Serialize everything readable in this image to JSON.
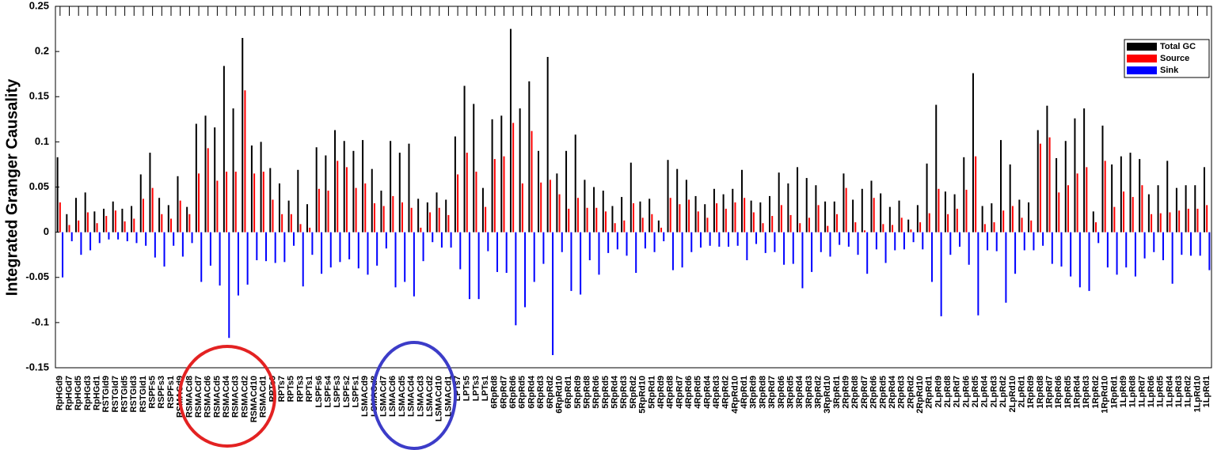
{
  "chart_data": {
    "type": "bar",
    "y_label": "Integrated Granger Causality",
    "categories": [
      "RpHGd9",
      "RpHGd7",
      "RpHGd5",
      "RpHGd3",
      "RpHGd1",
      "RSTGId9",
      "RSTGId7",
      "RSTGId5",
      "RSTGId3",
      "RSTGId1",
      "RSPFs5",
      "RSPFs3",
      "RSPFs1",
      "RSMACd9",
      "RSMACd8",
      "RSMACd7",
      "RSMACd6",
      "RSMACd5",
      "RSMACd4",
      "RSMACd3",
      "RSMACd2",
      "RSMACd10",
      "RSMACd1",
      "RPTs9",
      "RPTs7",
      "RPTs5",
      "RPTs3",
      "RPTs1",
      "LSPFs6",
      "LSPFs4",
      "LSPFs3",
      "LSPFs2",
      "LSPFs1",
      "LSMACd9",
      "LSMACd8",
      "LSMACd7",
      "LSMACd6",
      "LSMACd5",
      "LSMACd4",
      "LSMACd3",
      "LSMACd2",
      "LSMACd10",
      "LSMACd1",
      "LPTs7",
      "LPTs5",
      "LPTs3",
      "LPTs1",
      "6RpRd8",
      "6RpRd7",
      "6RpRd6",
      "6RpRd5",
      "6RpRd4",
      "6RpRd3",
      "6RpRd2",
      "6RpRd10",
      "6RpRd1",
      "5RpRd9",
      "5RpRd8",
      "5RpRd6",
      "5RpRd5",
      "5RpRd4",
      "5RpRd3",
      "5RpRd2",
      "5RpRd10",
      "5RpRd1",
      "4RpRd9",
      "4RpRd8",
      "4RpRd7",
      "4RpRd6",
      "4RpRd5",
      "4RpRd4",
      "4RpRd3",
      "4RpRd2",
      "4RpRd10",
      "4RpRd1",
      "3RpRd9",
      "3RpRd8",
      "3RpRd7",
      "3RpRd6",
      "3RpRd5",
      "3RpRd4",
      "3RpRd3",
      "3RpRd2",
      "3RpRd10",
      "3RpRd1",
      "2RpRd9",
      "2RpRd8",
      "2RpRd7",
      "2RpRd6",
      "2RpRd5",
      "2RpRd4",
      "2RpRd3",
      "2RpRd2",
      "2RpRd10",
      "2RpRd1",
      "2LpRd9",
      "2LpRd8",
      "2LpRd7",
      "2LpRd6",
      "2LpRd5",
      "2LpRd4",
      "2LpRd3",
      "2LpRd2",
      "2LpRd10",
      "2LpRd1",
      "1RpRd9",
      "1RpRd8",
      "1RpRd7",
      "1RpRd6",
      "1RpRd5",
      "1RpRd4",
      "1RpRd3",
      "1RpRd2",
      "1RpRd10",
      "1RpRd1",
      "1LpRd9",
      "1LpRd8",
      "1LpRd7",
      "1LpRd6",
      "1LpRd5",
      "1LpRd4",
      "1LpRd3",
      "1LpRd2",
      "1LpRd10",
      "1LpRd1"
    ],
    "series": [
      {
        "name": "Total GC",
        "color": "#000000",
        "values": [
          0.083,
          0.02,
          0.038,
          0.044,
          0.023,
          0.026,
          0.034,
          0.026,
          0.029,
          0.064,
          0.088,
          0.038,
          0.03,
          0.062,
          0.028,
          0.12,
          0.129,
          0.116,
          0.184,
          0.137,
          0.215,
          0.096,
          0.1,
          0.071,
          0.054,
          0.035,
          0.069,
          0.031,
          0.094,
          0.085,
          0.113,
          0.101,
          0.09,
          0.102,
          0.07,
          0.046,
          0.101,
          0.088,
          0.098,
          0.037,
          0.033,
          0.044,
          0.036,
          0.106,
          0.162,
          0.142,
          0.049,
          0.125,
          0.129,
          0.225,
          0.137,
          0.167,
          0.09,
          0.194,
          0.065,
          0.09,
          0.108,
          0.058,
          0.05,
          0.046,
          0.029,
          0.039,
          0.077,
          0.034,
          0.037,
          0.013,
          0.08,
          0.07,
          0.058,
          0.04,
          0.031,
          0.048,
          0.042,
          0.048,
          0.069,
          0.035,
          0.033,
          0.04,
          0.066,
          0.054,
          0.072,
          0.06,
          0.052,
          0.034,
          0.034,
          0.065,
          0.036,
          0.048,
          0.057,
          0.043,
          0.028,
          0.035,
          0.014,
          0.03,
          0.076,
          0.141,
          0.045,
          0.042,
          0.083,
          0.176,
          0.029,
          0.032,
          0.102,
          0.075,
          0.036,
          0.033,
          0.113,
          0.14,
          0.082,
          0.101,
          0.126,
          0.137,
          0.023,
          0.118,
          0.075,
          0.084,
          0.088,
          0.081,
          0.042,
          0.052,
          0.079,
          0.049,
          0.052,
          0.052,
          0.072
        ]
      },
      {
        "name": "Source",
        "color": "#ff0000",
        "values": [
          0.033,
          0.008,
          0.013,
          0.022,
          0.01,
          0.018,
          0.024,
          0.012,
          0.015,
          0.037,
          0.049,
          0.02,
          0.015,
          0.035,
          0.02,
          0.065,
          0.093,
          0.057,
          0.067,
          0.067,
          0.157,
          0.065,
          0.067,
          0.036,
          0.02,
          0.02,
          0.009,
          0.005,
          0.048,
          0.046,
          0.079,
          0.072,
          0.049,
          0.054,
          0.032,
          0.029,
          0.04,
          0.033,
          0.027,
          0.005,
          0.022,
          0.027,
          0.019,
          0.064,
          0.088,
          0.067,
          0.028,
          0.081,
          0.084,
          0.121,
          0.054,
          0.112,
          0.055,
          0.058,
          0.042,
          0.026,
          0.038,
          0.027,
          0.027,
          0.023,
          0.01,
          0.013,
          0.032,
          0.016,
          0.02,
          0.005,
          0.038,
          0.031,
          0.036,
          0.023,
          0.016,
          0.032,
          0.026,
          0.033,
          0.038,
          0.022,
          0.01,
          0.018,
          0.03,
          0.019,
          0.01,
          0.016,
          0.03,
          0.007,
          0.02,
          0.049,
          0.011,
          0.002,
          0.038,
          0.009,
          0.008,
          0.016,
          0.003,
          0.011,
          0.021,
          0.048,
          0.02,
          0.026,
          0.047,
          0.084,
          0.009,
          0.011,
          0.024,
          0.029,
          0.016,
          0.013,
          0.098,
          0.105,
          0.044,
          0.052,
          0.065,
          0.072,
          0.011,
          0.079,
          0.028,
          0.045,
          0.039,
          0.052,
          0.02,
          0.021,
          0.022,
          0.024,
          0.026,
          0.026,
          0.03
        ]
      },
      {
        "name": "Sink",
        "color": "#0000ff",
        "values": [
          -0.05,
          -0.01,
          -0.025,
          -0.02,
          -0.012,
          -0.008,
          -0.008,
          -0.01,
          -0.012,
          -0.015,
          -0.028,
          -0.038,
          -0.015,
          -0.027,
          -0.012,
          -0.055,
          -0.037,
          -0.059,
          -0.117,
          -0.07,
          -0.058,
          -0.031,
          -0.032,
          -0.034,
          -0.033,
          -0.015,
          -0.06,
          -0.025,
          -0.046,
          -0.039,
          -0.033,
          -0.03,
          -0.04,
          -0.047,
          -0.037,
          -0.018,
          -0.061,
          -0.055,
          -0.071,
          -0.032,
          -0.011,
          -0.017,
          -0.017,
          -0.041,
          -0.074,
          -0.074,
          -0.021,
          -0.044,
          -0.045,
          -0.103,
          -0.083,
          -0.055,
          -0.035,
          -0.136,
          -0.022,
          -0.065,
          -0.069,
          -0.031,
          -0.047,
          -0.023,
          -0.019,
          -0.026,
          -0.045,
          -0.018,
          -0.022,
          -0.01,
          -0.042,
          -0.039,
          -0.022,
          -0.017,
          -0.015,
          -0.016,
          -0.016,
          -0.015,
          -0.031,
          -0.013,
          -0.023,
          -0.022,
          -0.036,
          -0.035,
          -0.062,
          -0.044,
          -0.022,
          -0.027,
          -0.014,
          -0.016,
          -0.025,
          -0.046,
          -0.019,
          -0.034,
          -0.02,
          -0.019,
          -0.011,
          -0.019,
          -0.055,
          -0.093,
          -0.025,
          -0.016,
          -0.036,
          -0.092,
          -0.02,
          -0.021,
          -0.078,
          -0.046,
          -0.02,
          -0.02,
          -0.015,
          -0.035,
          -0.038,
          -0.049,
          -0.061,
          -0.065,
          -0.012,
          -0.039,
          -0.047,
          -0.039,
          -0.049,
          -0.029,
          -0.022,
          -0.031,
          -0.057,
          -0.025,
          -0.026,
          -0.026,
          -0.042
        ]
      }
    ],
    "ylim": [
      -0.15,
      0.25
    ],
    "yticks": [
      0.25,
      0.2,
      0.15,
      0.1,
      0.05,
      0,
      -0.05,
      -0.1,
      -0.15
    ],
    "legend": "upper right"
  }
}
